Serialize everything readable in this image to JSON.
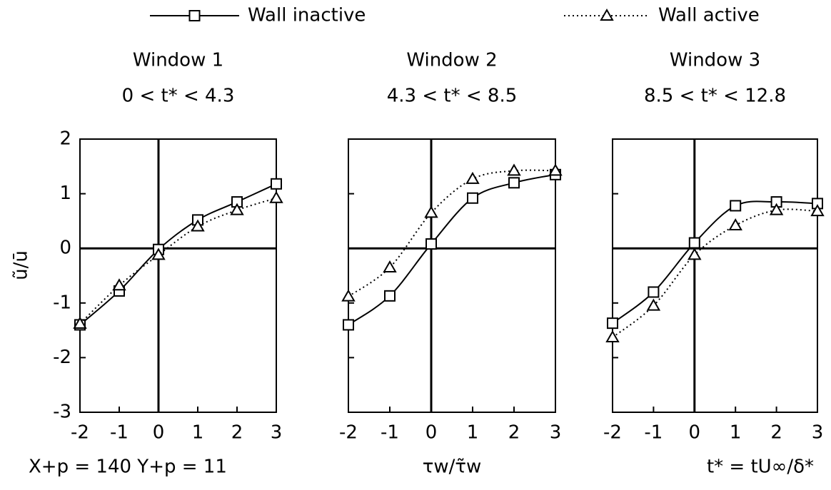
{
  "chart_data": [
    {
      "type": "line",
      "title": "Window 1",
      "subtitle": "0 < t* < 4.3",
      "ylabel": "ũ/ū",
      "x": [
        -2,
        -1,
        0,
        1,
        2,
        3
      ],
      "series": [
        {
          "name": "Wall inactive",
          "color": "#000000",
          "style": "solid",
          "marker": "square",
          "values": [
            -1.4,
            -0.78,
            -0.02,
            0.52,
            0.85,
            1.18
          ]
        },
        {
          "name": "Wall active",
          "color": "#000000",
          "style": "dotted",
          "marker": "triangle",
          "values": [
            -1.38,
            -0.68,
            -0.12,
            0.4,
            0.7,
            0.92
          ]
        }
      ],
      "xlim": [
        -2,
        3
      ],
      "xticks": [
        -2,
        -1,
        0,
        1,
        2,
        3
      ],
      "ylim": [
        -3,
        2
      ],
      "yticks": [
        -3,
        -2,
        -1,
        0,
        1,
        2
      ]
    },
    {
      "type": "line",
      "title": "Window 2",
      "subtitle": "4.3 < t* < 8.5",
      "xlabel": "τw/τ̃w",
      "x": [
        -2,
        -1,
        0,
        1,
        2,
        3
      ],
      "series": [
        {
          "color": "#000000",
          "style": "solid",
          "marker": "square",
          "values": [
            -1.4,
            -0.87,
            0.08,
            0.92,
            1.2,
            1.35
          ]
        },
        {
          "color": "#000000",
          "style": "dotted",
          "marker": "triangle",
          "values": [
            -0.88,
            -0.35,
            0.65,
            1.27,
            1.42,
            1.42
          ]
        }
      ],
      "xlim": [
        -2,
        3
      ],
      "xticks": [
        -2,
        -1,
        0,
        1,
        2,
        3
      ],
      "ylim": [
        -3,
        2
      ],
      "yticks": [
        -3,
        -2,
        -1,
        0,
        1,
        2
      ]
    },
    {
      "type": "line",
      "title": "Window 3",
      "subtitle": "8.5 < t* < 12.8",
      "x": [
        -2,
        -1,
        0,
        1,
        2,
        3
      ],
      "series": [
        {
          "color": "#000000",
          "style": "solid",
          "marker": "square",
          "values": [
            -1.37,
            -0.8,
            0.1,
            0.78,
            0.85,
            0.82
          ]
        },
        {
          "color": "#000000",
          "style": "dotted",
          "marker": "triangle",
          "values": [
            -1.63,
            -1.05,
            -0.12,
            0.42,
            0.7,
            0.68
          ]
        }
      ],
      "xlim": [
        -2,
        3
      ],
      "xticks": [
        -2,
        -1,
        0,
        1,
        2,
        3
      ],
      "ylim": [
        -3,
        2
      ],
      "yticks": [
        -3,
        -2,
        -1,
        0,
        1,
        2
      ]
    }
  ],
  "annotations": [
    "X+p = 140  Y+p = 11",
    "t* = tU∞/δ*"
  ]
}
